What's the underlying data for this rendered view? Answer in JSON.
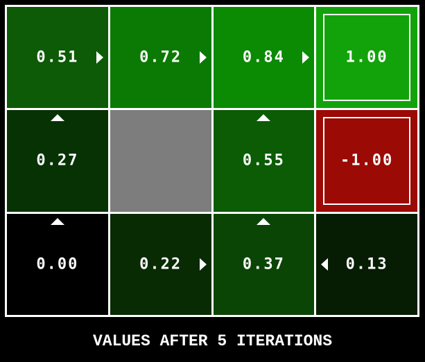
{
  "title": "VALUES AFTER 5 ITERATIONS",
  "colors": {
    "background": "#000000",
    "grid_line": "#ffffff",
    "wall": "#7d7d7d",
    "text": "#ffffff",
    "terminal_positive": "#12a30a",
    "terminal_negative": "#9b0a05"
  },
  "grid": {
    "rows": 3,
    "cols": 4,
    "cells": [
      {
        "row": 0,
        "col": 0,
        "value": "0.51",
        "color": "#0d5a07",
        "arrows": [
          "right"
        ],
        "wall": false,
        "terminal": false
      },
      {
        "row": 0,
        "col": 1,
        "value": "0.72",
        "color": "#0b7a04",
        "arrows": [
          "right"
        ],
        "wall": false,
        "terminal": false
      },
      {
        "row": 0,
        "col": 2,
        "value": "0.84",
        "color": "#0b8a03",
        "arrows": [
          "right"
        ],
        "wall": false,
        "terminal": false
      },
      {
        "row": 0,
        "col": 3,
        "value": "1.00",
        "color": "#12a30a",
        "arrows": [],
        "wall": false,
        "terminal": true
      },
      {
        "row": 1,
        "col": 0,
        "value": "0.27",
        "color": "#073204",
        "arrows": [
          "up"
        ],
        "wall": false,
        "terminal": false
      },
      {
        "row": 1,
        "col": 1,
        "value": "",
        "color": "#7d7d7d",
        "arrows": [],
        "wall": true,
        "terminal": false
      },
      {
        "row": 1,
        "col": 2,
        "value": "0.55",
        "color": "#0b5c05",
        "arrows": [
          "up"
        ],
        "wall": false,
        "terminal": false
      },
      {
        "row": 1,
        "col": 3,
        "value": "-1.00",
        "color": "#9b0a05",
        "arrows": [],
        "wall": false,
        "terminal": true
      },
      {
        "row": 2,
        "col": 0,
        "value": "0.00",
        "color": "#000000",
        "arrows": [
          "up"
        ],
        "wall": false,
        "terminal": false
      },
      {
        "row": 2,
        "col": 1,
        "value": "0.22",
        "color": "#092b04",
        "arrows": [
          "right"
        ],
        "wall": false,
        "terminal": false
      },
      {
        "row": 2,
        "col": 2,
        "value": "0.37",
        "color": "#0a4505",
        "arrows": [
          "up"
        ],
        "wall": false,
        "terminal": false
      },
      {
        "row": 2,
        "col": 3,
        "value": "0.13",
        "color": "#061d03",
        "arrows": [
          "left"
        ],
        "wall": false,
        "terminal": false
      }
    ]
  }
}
